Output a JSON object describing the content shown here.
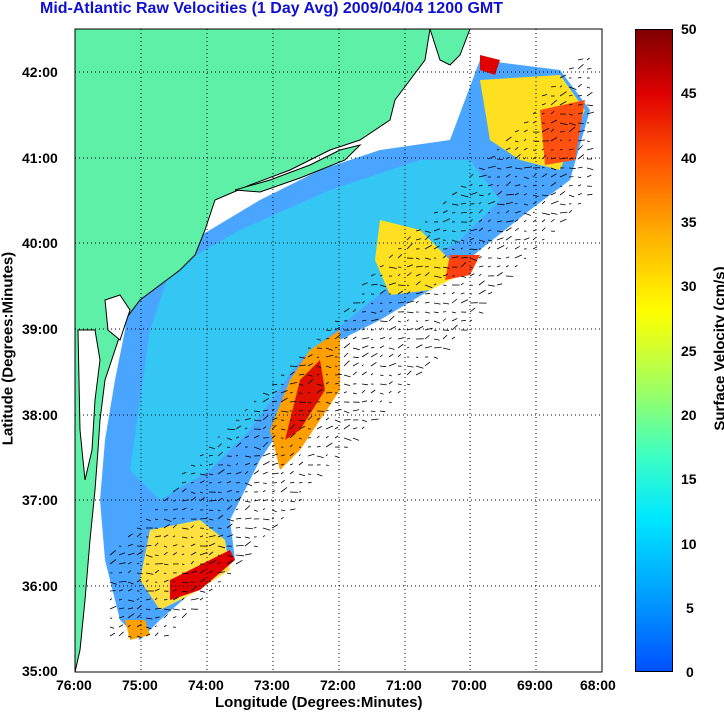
{
  "title": "Mid-Atlantic Raw Velocities (1 Day Avg) 2009/04/04 1200 GMT",
  "map": {
    "xlabel": "Longitude (Degrees:Minutes)",
    "ylabel": "Latitude (Degrees:Minutes)",
    "lon_ticks": [
      "76:00",
      "75:00",
      "74:00",
      "73:00",
      "72:00",
      "71:00",
      "70:00",
      "69:00",
      "68:00"
    ],
    "lat_ticks": [
      "42:00",
      "41:00",
      "40:00",
      "39:00",
      "38:00",
      "37:00",
      "36:00",
      "35:00"
    ],
    "lon_range": [
      -76,
      -68
    ],
    "lat_range": [
      35,
      42.5
    ],
    "land_color": "#5ff0a8",
    "grid": true
  },
  "colorbar": {
    "label": "Surface Velocity (cm/s)",
    "ticks": [
      "50",
      "45",
      "40",
      "35",
      "30",
      "25",
      "20",
      "15",
      "10",
      "5",
      "0"
    ],
    "range": [
      0,
      50
    ],
    "colors": [
      "#0050ff",
      "#00a0ff",
      "#00e8ff",
      "#40ffc0",
      "#a0ff60",
      "#ffff00",
      "#ffb000",
      "#ff5000",
      "#e00000",
      "#800000"
    ]
  }
}
